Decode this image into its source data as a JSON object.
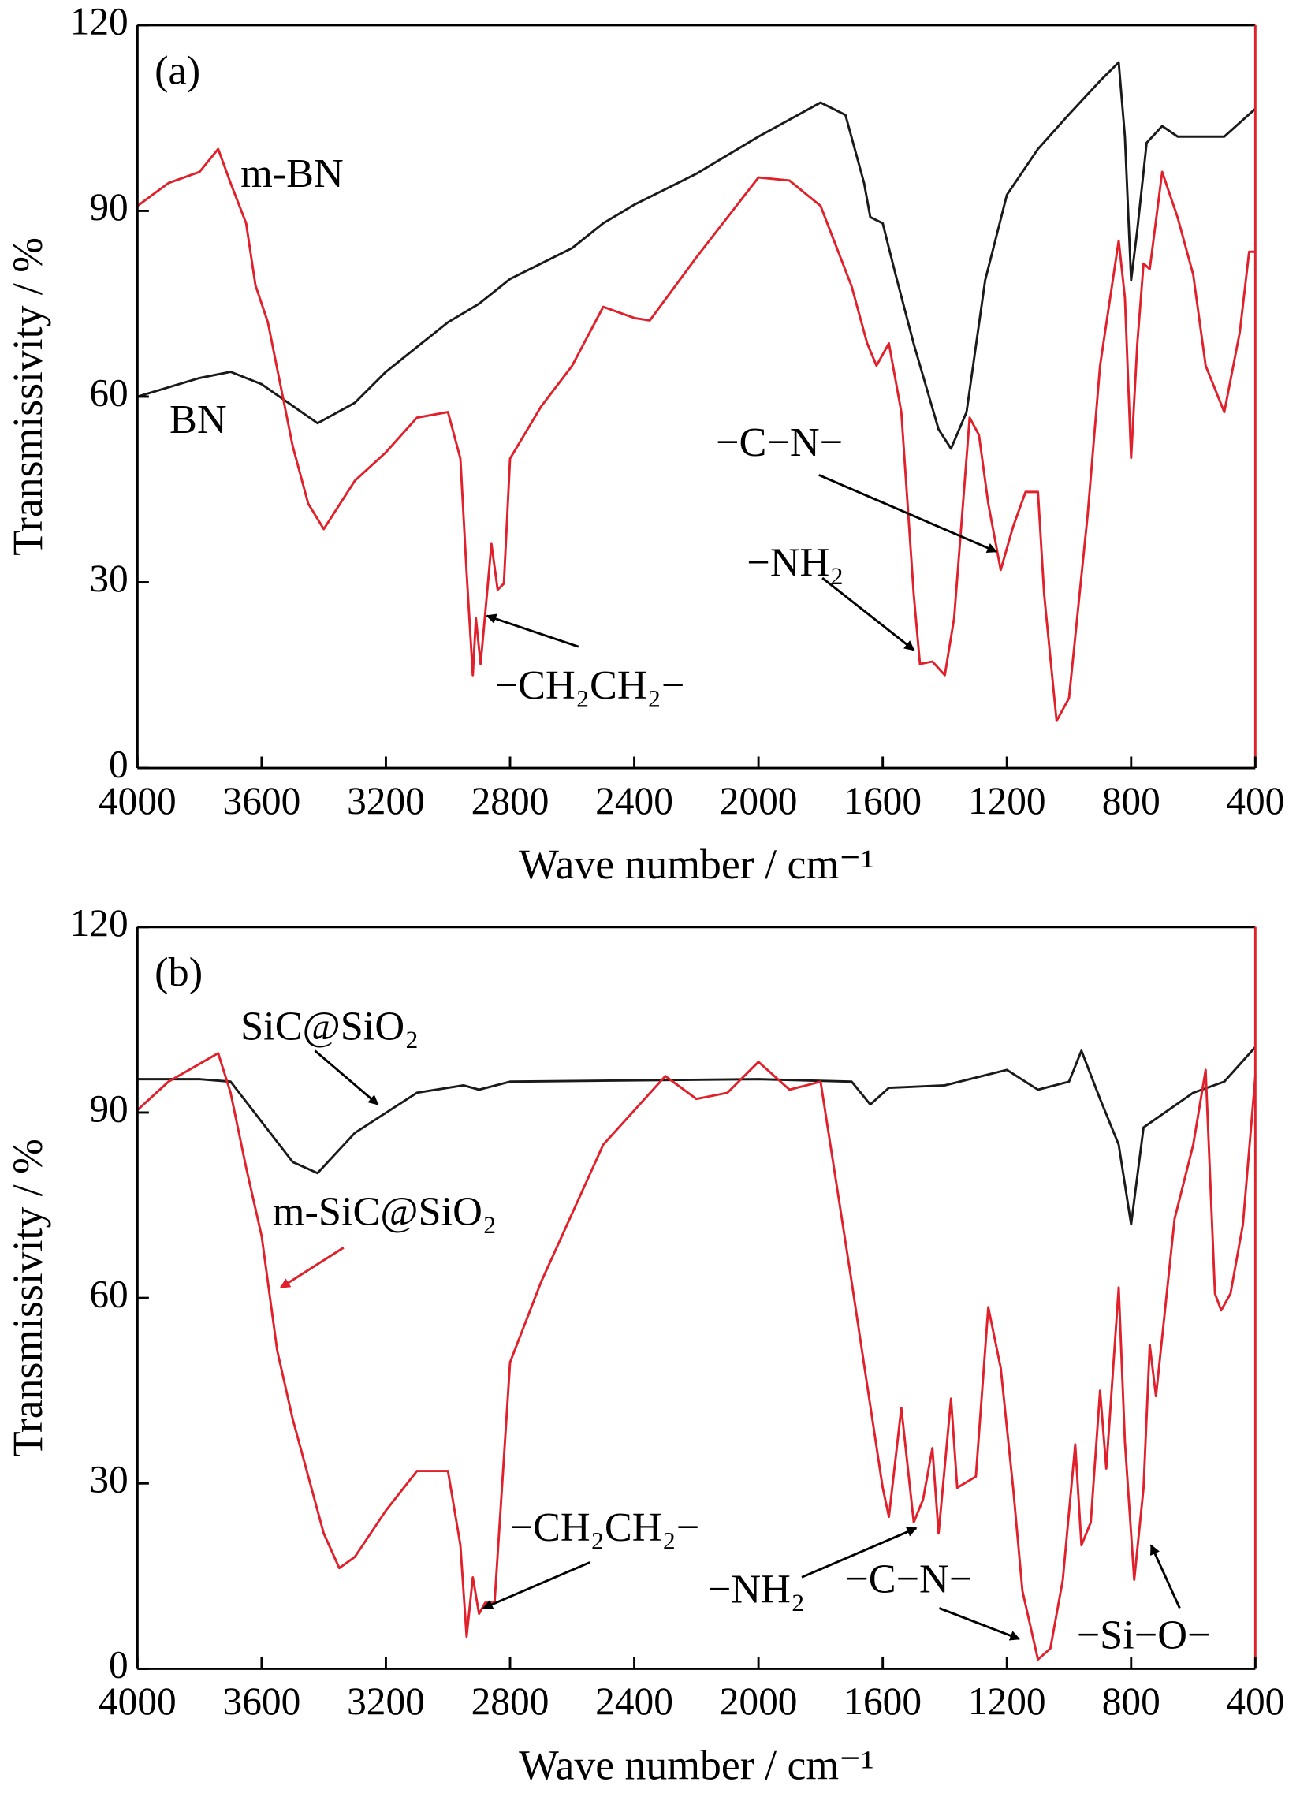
{
  "chart_data": [
    {
      "type": "line",
      "xlabel": "Wave number / cm⁻¹",
      "ylabel": "Transmissivity / %",
      "xlim": [
        4000,
        400
      ],
      "ylim": [
        0,
        120
      ],
      "xticks": [
        4000,
        3600,
        3200,
        2800,
        2400,
        2000,
        1600,
        1200,
        800,
        400
      ],
      "yticks": [
        0,
        30,
        60,
        90,
        120
      ],
      "annotations": [
        "(a)",
        "−CH₂CH₂−",
        "−NH₂",
        "−C−N−"
      ],
      "series": [
        {
          "name": "BN",
          "color": "#1a1a1a",
          "x": [
            4000,
            3800,
            3700,
            3600,
            3500,
            3420,
            3300,
            3200,
            3000,
            2900,
            2800,
            2600,
            2500,
            2400,
            2200,
            2000,
            1800,
            1720,
            1660,
            1640,
            1600,
            1560,
            1500,
            1420,
            1380,
            1330,
            1270,
            1200,
            1100,
            1000,
            900,
            840,
            820,
            800,
            780,
            750,
            700,
            650,
            500,
            400
          ],
          "values": [
            60,
            63,
            64,
            62,
            58.5,
            55.7,
            59,
            64,
            72,
            75,
            79,
            84,
            88,
            91,
            96,
            102,
            107.5,
            105.5,
            94.5,
            89,
            88,
            80,
            68.5,
            54.7,
            51.6,
            57.5,
            78.8,
            92.6,
            100,
            105.6,
            111,
            114,
            102,
            78.8,
            87,
            101,
            103.7,
            102,
            102,
            106.5
          ]
        },
        {
          "name": "m-BN",
          "color": "#e0202a",
          "x": [
            4000,
            3900,
            3800,
            3740,
            3700,
            3650,
            3620,
            3580,
            3500,
            3450,
            3400,
            3300,
            3200,
            3100,
            3000,
            2960,
            2940,
            2920,
            2910,
            2895,
            2880,
            2860,
            2840,
            2820,
            2800,
            2700,
            2600,
            2500,
            2400,
            2350,
            2200,
            2000,
            1900,
            1800,
            1700,
            1650,
            1620,
            1580,
            1540,
            1500,
            1480,
            1440,
            1400,
            1370,
            1330,
            1320,
            1290,
            1260,
            1220,
            1180,
            1140,
            1100,
            1080,
            1040,
            1000,
            940,
            900,
            840,
            820,
            800,
            780,
            760,
            740,
            700,
            650,
            600,
            560,
            500,
            450,
            420,
            400
          ],
          "values": [
            90.8,
            94.5,
            96.3,
            100,
            94.5,
            88,
            78,
            72,
            52,
            42.7,
            38.6,
            46.4,
            51,
            56.6,
            57.5,
            50,
            31.6,
            15,
            24.2,
            16.8,
            25,
            36.2,
            28.8,
            29.8,
            50,
            58.4,
            65,
            74.5,
            72.7,
            72.3,
            82.5,
            95.4,
            94.9,
            90.8,
            77.8,
            68.6,
            65,
            68.6,
            57.5,
            28,
            16.8,
            17.2,
            15,
            24.2,
            50.1,
            56.6,
            53.8,
            42.7,
            32,
            39,
            44.6,
            44.6,
            28,
            7.6,
            11.3,
            40.9,
            65,
            85.2,
            76,
            50.1,
            68.6,
            81.5,
            80.6,
            96.3,
            88.9,
            79.7,
            65,
            57.5,
            70.4,
            83.4,
            83.4
          ]
        }
      ]
    },
    {
      "type": "line",
      "xlabel": "Wave number / cm⁻¹",
      "ylabel": "Transmissivity / %",
      "xlim": [
        4000,
        400
      ],
      "ylim": [
        0,
        120
      ],
      "xticks": [
        4000,
        3600,
        3200,
        2800,
        2400,
        2000,
        1600,
        1200,
        800,
        400
      ],
      "yticks": [
        0,
        30,
        60,
        90,
        120
      ],
      "annotations": [
        "(b)",
        "−CH₂CH₂−",
        "−NH₂",
        "−C−N−",
        "−Si−O−"
      ],
      "series": [
        {
          "name": "SiC@SiO₂",
          "color": "#1a1a1a",
          "x": [
            4000,
            3800,
            3700,
            3600,
            3500,
            3420,
            3300,
            3100,
            2950,
            2900,
            2800,
            2000,
            1700,
            1640,
            1580,
            1400,
            1200,
            1100,
            1000,
            960,
            900,
            840,
            800,
            760,
            600,
            500,
            400
          ],
          "values": [
            95.4,
            95.4,
            95,
            88.5,
            82,
            80.2,
            86.7,
            93.2,
            94.4,
            93.7,
            95,
            95.4,
            95,
            91.3,
            94,
            94.4,
            96.9,
            93.7,
            95,
            100,
            92.2,
            84.8,
            71.9,
            87.6,
            93.2,
            95,
            100.6
          ]
        },
        {
          "name": "m-SiC@SiO₂",
          "color": "#e0202a",
          "x": [
            4000,
            3900,
            3740,
            3700,
            3650,
            3600,
            3550,
            3500,
            3400,
            3350,
            3300,
            3200,
            3100,
            3000,
            2960,
            2940,
            2920,
            2900,
            2880,
            2850,
            2800,
            2700,
            2600,
            2500,
            2300,
            2200,
            2100,
            2000,
            1900,
            1800,
            1700,
            1650,
            1600,
            1580,
            1540,
            1500,
            1470,
            1440,
            1420,
            1380,
            1360,
            1300,
            1260,
            1220,
            1180,
            1150,
            1100,
            1060,
            1020,
            980,
            960,
            930,
            900,
            880,
            840,
            820,
            790,
            760,
            740,
            720,
            660,
            600,
            560,
            530,
            510,
            480,
            440,
            400
          ],
          "values": [
            90.4,
            95,
            99.6,
            93.2,
            81.1,
            70,
            51.5,
            40.4,
            21.9,
            16.3,
            18.1,
            25.6,
            32,
            32,
            20,
            5.2,
            14.8,
            8.9,
            10.7,
            10.7,
            49.6,
            62.6,
            73.7,
            84.8,
            95.9,
            92.2,
            93.2,
            98.2,
            93.7,
            95,
            62.6,
            45.9,
            29.3,
            24.6,
            42.2,
            23.7,
            27.4,
            35.7,
            21.9,
            43.7,
            29.3,
            31.1,
            58.5,
            48.7,
            29.3,
            12.6,
            1.5,
            3.3,
            14.4,
            36.3,
            20,
            23.7,
            45,
            32.4,
            61.7,
            36.7,
            14.4,
            29.3,
            52.4,
            44.1,
            72.8,
            84.8,
            96.9,
            60.7,
            58,
            60.7,
            71.9,
            95.9
          ]
        }
      ]
    }
  ]
}
